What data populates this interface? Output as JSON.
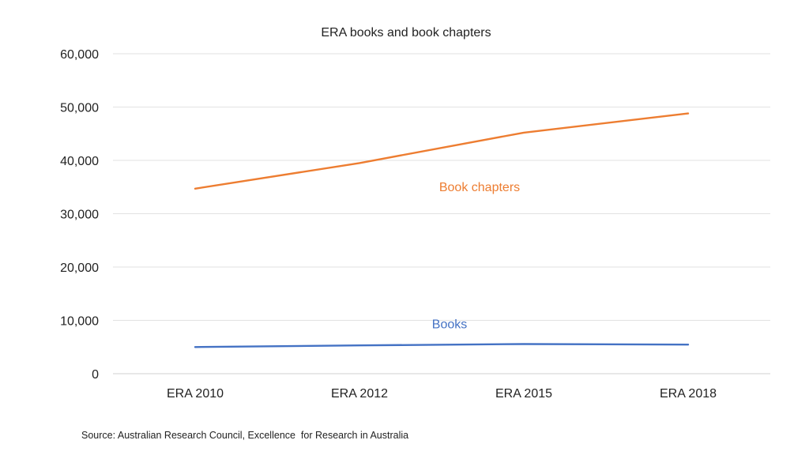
{
  "chart_data": {
    "type": "line",
    "title": "ERA books and book chapters",
    "categories": [
      "ERA 2010",
      "ERA 2012",
      "ERA 2015",
      "ERA 2018"
    ],
    "series": [
      {
        "name": "Book chapters",
        "values": [
          34700,
          39500,
          45200,
          48800
        ],
        "color": "#ED7D31"
      },
      {
        "name": "Books",
        "values": [
          5000,
          5300,
          5550,
          5450
        ],
        "color": "#4472C4"
      }
    ],
    "y_ticks": [
      "0",
      "10,000",
      "20,000",
      "30,000",
      "40,000",
      "50,000",
      "60,000"
    ],
    "ylim": [
      0,
      60000
    ],
    "grid": true,
    "legend": "none (inline series labels)",
    "source": "Source: Australian Research Council, Excellence  for Research in Australia"
  }
}
